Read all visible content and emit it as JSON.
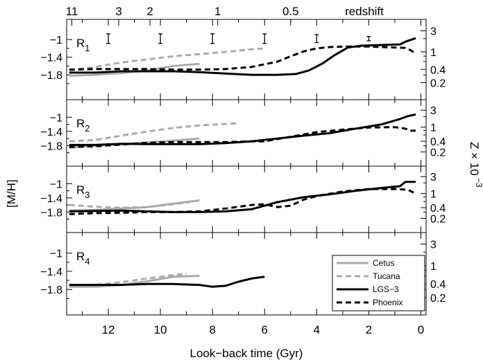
{
  "chart_data": {
    "type": "line",
    "xlabel": "Look−back time (Gyr)",
    "ylabel": "[M/H]",
    "ylabel_right": "Z × 10",
    "ylabel_right_exp": "−3",
    "xlim": [
      13.6,
      -0.2
    ],
    "ylim": [
      -2.3,
      -0.7
    ],
    "x_ticks": [
      12,
      10,
      8,
      6,
      4,
      2,
      0
    ],
    "x_tick_labels": [
      "12",
      "10",
      "8",
      "6",
      "4",
      "2",
      "0"
    ],
    "y_ticks": [
      -1,
      -1.4,
      -1.8
    ],
    "y_tick_labels": [
      "−1",
      "−1.4",
      "−1.8"
    ],
    "z_ticks": [
      3,
      1,
      0.4,
      0.2
    ],
    "z_tick_labels": [
      "3",
      "1",
      "0.4",
      "0.2"
    ],
    "redshift_title": "redshift",
    "redshift_ticks": [
      {
        "label": "11",
        "x": 13.4
      },
      {
        "label": "3",
        "x": 11.6
      },
      {
        "label": "2",
        "x": 10.4
      },
      {
        "label": "1",
        "x": 7.8
      },
      {
        "label": "0.5",
        "x": 5.0
      }
    ],
    "error_bars": [
      {
        "x": 12.0,
        "half_height": 0.11
      },
      {
        "x": 10.0,
        "half_height": 0.11
      },
      {
        "x": 8.0,
        "half_height": 0.11
      },
      {
        "x": 6.0,
        "half_height": 0.11
      },
      {
        "x": 4.0,
        "half_height": 0.09
      },
      {
        "x": 2.0,
        "half_height": 0.05
      }
    ],
    "legend": {
      "placement": "bottom-right",
      "entries": [
        {
          "name": "Cetus",
          "color": "#aaaaaa",
          "dash": "solid"
        },
        {
          "name": "Tucana",
          "color": "#aaaaaa",
          "dash": "dashed"
        },
        {
          "name": "LGS−3",
          "color": "#000000",
          "dash": "solid"
        },
        {
          "name": "Phoenix",
          "color": "#000000",
          "dash": "dashed"
        }
      ]
    },
    "panels": [
      {
        "label": "R",
        "sub": "1",
        "series": [
          {
            "name": "Cetus",
            "x": [
              13.5,
              12.5,
              11.5,
              10.5,
              9.5,
              8.5
            ],
            "y": [
              -1.82,
              -1.8,
              -1.76,
              -1.7,
              -1.6,
              -1.55
            ]
          },
          {
            "name": "Tucana",
            "x": [
              13.5,
              12.5,
              11.5,
              10.5,
              9.5,
              8.5,
              7.5,
              6.5,
              6.0
            ],
            "y": [
              -1.7,
              -1.62,
              -1.52,
              -1.45,
              -1.38,
              -1.33,
              -1.28,
              -1.22,
              -1.2
            ]
          },
          {
            "name": "LGS−3",
            "x": [
              13.5,
              12.5,
              11.5,
              10.5,
              9.5,
              8.5,
              7.5,
              6.5,
              5.5,
              4.8,
              4.3,
              3.8,
              3.3,
              2.8,
              2.3,
              1.8,
              1.3,
              0.8,
              0.6,
              0.2
            ],
            "y": [
              -1.75,
              -1.75,
              -1.72,
              -1.72,
              -1.72,
              -1.74,
              -1.77,
              -1.8,
              -1.8,
              -1.78,
              -1.7,
              -1.55,
              -1.35,
              -1.18,
              -1.14,
              -1.13,
              -1.12,
              -1.11,
              -1.05,
              -0.97
            ]
          },
          {
            "name": "Phoenix",
            "x": [
              13.5,
              12.5,
              11.5,
              10.5,
              9.5,
              8.5,
              7.5,
              6.5,
              5.5,
              5.0,
              4.5,
              4.0,
              3.5,
              3.0,
              2.5,
              2.0,
              1.5,
              1.0,
              0.6,
              0.4,
              0.2
            ],
            "y": [
              -1.68,
              -1.67,
              -1.67,
              -1.67,
              -1.68,
              -1.68,
              -1.67,
              -1.62,
              -1.5,
              -1.38,
              -1.27,
              -1.2,
              -1.17,
              -1.16,
              -1.16,
              -1.16,
              -1.17,
              -1.18,
              -1.19,
              -1.24,
              -1.32
            ]
          }
        ]
      },
      {
        "label": "R",
        "sub": "2",
        "series": [
          {
            "name": "Cetus",
            "x": [
              13.5,
              12.5,
              11.5,
              10.5,
              9.5,
              8.5
            ],
            "y": [
              -1.86,
              -1.8,
              -1.76,
              -1.71,
              -1.66,
              -1.6
            ]
          },
          {
            "name": "Tucana",
            "x": [
              13.5,
              12.5,
              11.5,
              10.5,
              9.5,
              8.5,
              7.5,
              7.0
            ],
            "y": [
              -1.68,
              -1.64,
              -1.52,
              -1.4,
              -1.3,
              -1.23,
              -1.19,
              -1.17
            ]
          },
          {
            "name": "LGS−3",
            "x": [
              13.5,
              12.5,
              11.5,
              10.5,
              9.5,
              8.5,
              7.5,
              6.5,
              5.5,
              4.5,
              3.5,
              2.5,
              1.5,
              0.8,
              0.5,
              0.2
            ],
            "y": [
              -1.78,
              -1.78,
              -1.75,
              -1.76,
              -1.76,
              -1.76,
              -1.73,
              -1.68,
              -1.6,
              -1.52,
              -1.45,
              -1.32,
              -1.2,
              -1.05,
              -0.97,
              -0.92
            ]
          },
          {
            "name": "Phoenix",
            "x": [
              13.5,
              12.5,
              11.5,
              10.5,
              9.5,
              8.5,
              7.5,
              6.5,
              6.0,
              5.0,
              4.0,
              3.0,
              2.0,
              1.0,
              0.6,
              0.4,
              0.2
            ],
            "y": [
              -1.84,
              -1.82,
              -1.77,
              -1.72,
              -1.7,
              -1.7,
              -1.7,
              -1.68,
              -1.68,
              -1.55,
              -1.42,
              -1.35,
              -1.29,
              -1.28,
              -1.32,
              -1.38,
              -1.38
            ]
          }
        ]
      },
      {
        "label": "R",
        "sub": "3",
        "series": [
          {
            "name": "Cetus",
            "x": [
              13.5,
              12.5,
              11.5,
              10.5,
              9.5,
              8.5
            ],
            "y": [
              -1.76,
              -1.74,
              -1.7,
              -1.66,
              -1.56,
              -1.47
            ]
          },
          {
            "name": "Tucana",
            "x": [
              13.5,
              12.5,
              11.5,
              10.5,
              9.5,
              8.9
            ],
            "y": [
              -1.6,
              -1.65,
              -1.68,
              -1.66,
              -1.58,
              -1.52
            ]
          },
          {
            "name": "LGS−3",
            "x": [
              13.5,
              12.5,
              11.5,
              10.5,
              9.5,
              8.5,
              7.5,
              6.5,
              5.5,
              4.5,
              3.5,
              2.5,
              1.5,
              0.8,
              0.6,
              0.2
            ],
            "y": [
              -1.78,
              -1.77,
              -1.76,
              -1.78,
              -1.8,
              -1.8,
              -1.78,
              -1.72,
              -1.52,
              -1.38,
              -1.3,
              -1.2,
              -1.12,
              -1.07,
              -0.95,
              -0.95
            ]
          },
          {
            "name": "Phoenix",
            "x": [
              13.5,
              12.5,
              11.5,
              10.5,
              9.5,
              8.5,
              7.5,
              6.5,
              6.0,
              5.5,
              5.0,
              4.5,
              4.0,
              3.0,
              2.0,
              1.0,
              0.5,
              0.2
            ],
            "y": [
              -1.86,
              -1.83,
              -1.82,
              -1.8,
              -1.8,
              -1.78,
              -1.7,
              -1.6,
              -1.58,
              -1.66,
              -1.62,
              -1.45,
              -1.35,
              -1.22,
              -1.15,
              -1.15,
              -1.17,
              -1.28
            ]
          }
        ]
      },
      {
        "label": "R",
        "sub": "4",
        "series": [
          {
            "name": "Cetus",
            "x": [
              13.5,
              12.5,
              11.5,
              10.5,
              9.5,
              8.5
            ],
            "y": [
              -1.74,
              -1.74,
              -1.7,
              -1.62,
              -1.52,
              -1.5
            ]
          },
          {
            "name": "Tucana",
            "x": [
              13.5,
              12.5,
              11.5,
              10.5,
              9.5,
              9.0
            ],
            "y": [
              -1.72,
              -1.7,
              -1.64,
              -1.56,
              -1.48,
              -1.46
            ]
          },
          {
            "name": "LGS−3",
            "x": [
              13.5,
              12.5,
              11.5,
              10.5,
              9.5,
              8.5,
              8.0,
              7.5,
              7.0,
              6.5,
              6.0
            ],
            "y": [
              -1.7,
              -1.7,
              -1.7,
              -1.68,
              -1.68,
              -1.7,
              -1.74,
              -1.72,
              -1.63,
              -1.56,
              -1.52
            ]
          }
        ]
      }
    ]
  }
}
